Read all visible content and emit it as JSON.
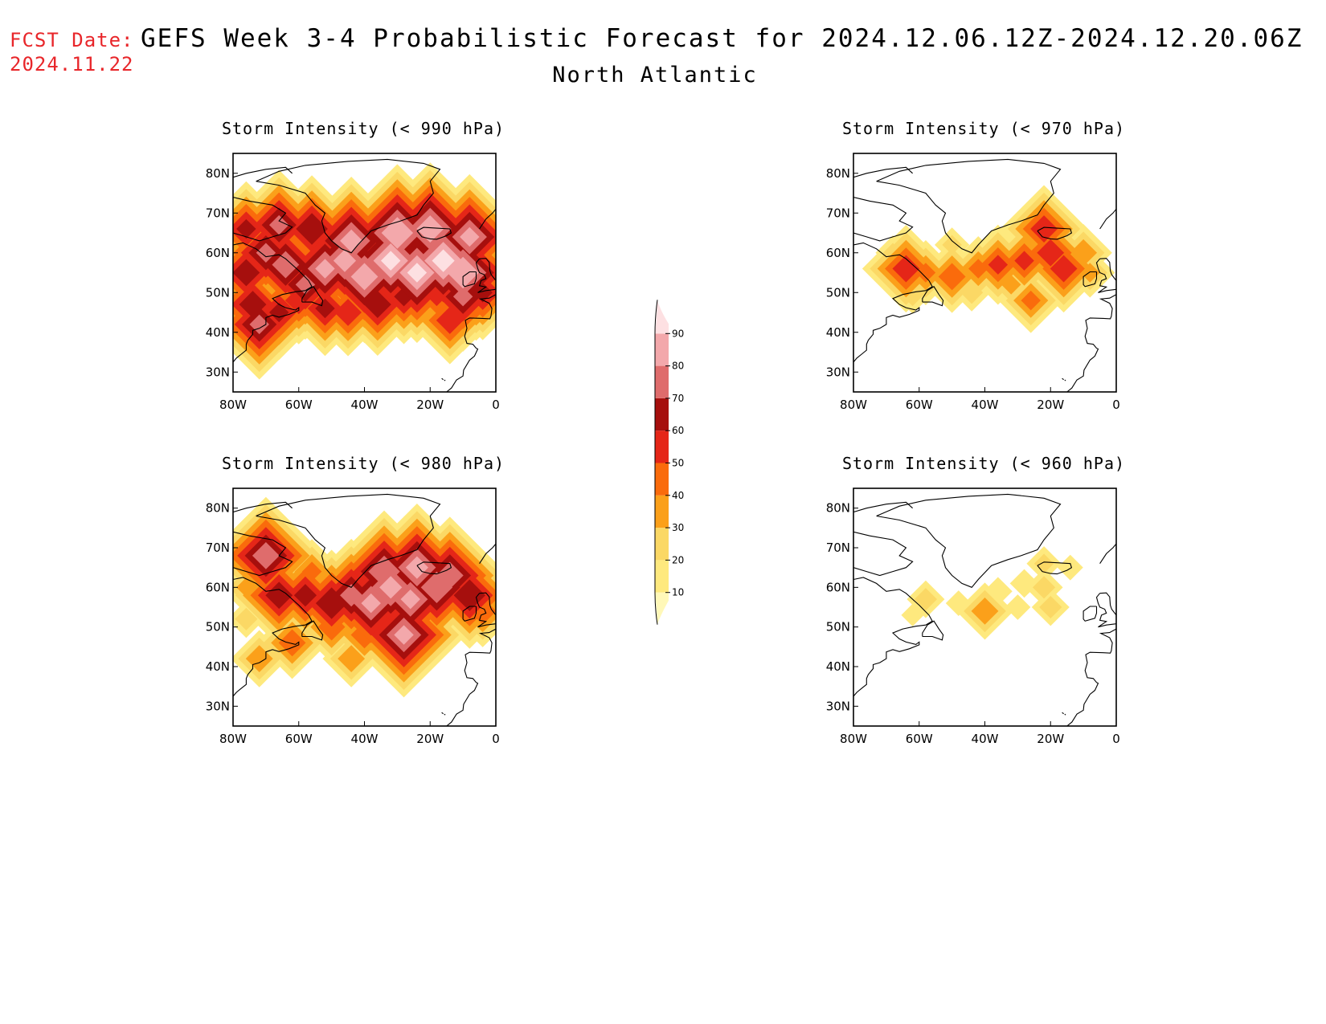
{
  "header": {
    "fcst_label": "FCST Date:",
    "fcst_date": "2024.11.22",
    "title": "GEFS Week 3-4 Probabilistic Forecast for 2024.12.06.12Z-2024.12.20.06Z",
    "subtitle": "North Atlantic"
  },
  "colorbar": {
    "levels": [
      10,
      20,
      30,
      40,
      50,
      60,
      70,
      80,
      90
    ],
    "colors": [
      "#fff8b8",
      "#fee97e",
      "#fbd865",
      "#fba01a",
      "#fa6b0c",
      "#e52618",
      "#a60f0d",
      "#df6c6c",
      "#f3a8ab",
      "#fde0e2"
    ]
  },
  "axes": {
    "x_ticks": [
      "80W",
      "60W",
      "40W",
      "20W",
      "0"
    ],
    "y_ticks": [
      "80N",
      "70N",
      "60N",
      "50N",
      "40N",
      "30N"
    ]
  },
  "panels": [
    {
      "title": "Storm Intensity (< 990 hPa)",
      "fields": [
        {
          "lon": -74,
          "lat": 47,
          "val": 65
        },
        {
          "lon": -72,
          "lat": 42,
          "val": 70
        },
        {
          "lon": -66,
          "lat": 45,
          "val": 60
        },
        {
          "lon": -60,
          "lat": 48,
          "val": 55
        },
        {
          "lon": -52,
          "lat": 46,
          "val": 60
        },
        {
          "lon": -45,
          "lat": 45,
          "val": 55
        },
        {
          "lon": -36,
          "lat": 47,
          "val": 65
        },
        {
          "lon": -28,
          "lat": 49,
          "val": 60
        },
        {
          "lon": -18,
          "lat": 50,
          "val": 55
        },
        {
          "lon": -10,
          "lat": 49,
          "val": 70
        },
        {
          "lon": -14,
          "lat": 43,
          "val": 55
        },
        {
          "lon": -6,
          "lat": 47,
          "val": 45
        },
        {
          "lon": -76,
          "lat": 55,
          "val": 65
        },
        {
          "lon": -70,
          "lat": 60,
          "val": 70
        },
        {
          "lon": -64,
          "lat": 57,
          "val": 75
        },
        {
          "lon": -58,
          "lat": 52,
          "val": 70
        },
        {
          "lon": -52,
          "lat": 56,
          "val": 80
        },
        {
          "lon": -46,
          "lat": 58,
          "val": 82
        },
        {
          "lon": -40,
          "lat": 54,
          "val": 85
        },
        {
          "lon": -32,
          "lat": 58,
          "val": 90
        },
        {
          "lon": -24,
          "lat": 55,
          "val": 90
        },
        {
          "lon": -16,
          "lat": 58,
          "val": 92
        },
        {
          "lon": -10,
          "lat": 55,
          "val": 88
        },
        {
          "lon": -44,
          "lat": 63,
          "val": 82
        },
        {
          "lon": -30,
          "lat": 65,
          "val": 88
        },
        {
          "lon": -20,
          "lat": 66,
          "val": 85
        },
        {
          "lon": -66,
          "lat": 67,
          "val": 70
        },
        {
          "lon": -76,
          "lat": 66,
          "val": 60
        },
        {
          "lon": -56,
          "lat": 66,
          "val": 68
        },
        {
          "lon": -8,
          "lat": 64,
          "val": 80
        },
        {
          "lon": -4,
          "lat": 50,
          "val": 60
        }
      ]
    },
    {
      "title": "Storm Intensity (< 970 hPa)",
      "fields": [
        {
          "lon": -64,
          "lat": 56,
          "val": 55
        },
        {
          "lon": -58,
          "lat": 55,
          "val": 40
        },
        {
          "lon": -50,
          "lat": 54,
          "val": 45
        },
        {
          "lon": -42,
          "lat": 56,
          "val": 40
        },
        {
          "lon": -36,
          "lat": 57,
          "val": 50
        },
        {
          "lon": -28,
          "lat": 58,
          "val": 50
        },
        {
          "lon": -20,
          "lat": 60,
          "val": 55
        },
        {
          "lon": -16,
          "lat": 56,
          "val": 55
        },
        {
          "lon": -22,
          "lat": 66,
          "val": 55
        },
        {
          "lon": -32,
          "lat": 52,
          "val": 30
        },
        {
          "lon": -26,
          "lat": 48,
          "val": 40
        },
        {
          "lon": -62,
          "lat": 50,
          "val": 25
        },
        {
          "lon": -68,
          "lat": 60,
          "val": 20
        },
        {
          "lon": -50,
          "lat": 62,
          "val": 20
        },
        {
          "lon": -10,
          "lat": 60,
          "val": 35
        },
        {
          "lon": -8,
          "lat": 55,
          "val": 30
        },
        {
          "lon": -44,
          "lat": 50,
          "val": 22
        }
      ]
    },
    {
      "title": "Storm Intensity (< 980 hPa)",
      "fields": [
        {
          "lon": -70,
          "lat": 68,
          "val": 75
        },
        {
          "lon": -66,
          "lat": 58,
          "val": 65
        },
        {
          "lon": -58,
          "lat": 58,
          "val": 62
        },
        {
          "lon": -50,
          "lat": 56,
          "val": 68
        },
        {
          "lon": -44,
          "lat": 58,
          "val": 72
        },
        {
          "lon": -38,
          "lat": 56,
          "val": 80
        },
        {
          "lon": -32,
          "lat": 60,
          "val": 82
        },
        {
          "lon": -26,
          "lat": 57,
          "val": 80
        },
        {
          "lon": -18,
          "lat": 60,
          "val": 78
        },
        {
          "lon": -24,
          "lat": 65,
          "val": 82
        },
        {
          "lon": -34,
          "lat": 64,
          "val": 78
        },
        {
          "lon": -14,
          "lat": 63,
          "val": 75
        },
        {
          "lon": -8,
          "lat": 58,
          "val": 68
        },
        {
          "lon": -28,
          "lat": 48,
          "val": 80
        },
        {
          "lon": -40,
          "lat": 48,
          "val": 45
        },
        {
          "lon": -44,
          "lat": 42,
          "val": 35
        },
        {
          "lon": -62,
          "lat": 46,
          "val": 45
        },
        {
          "lon": -72,
          "lat": 42,
          "val": 35
        },
        {
          "lon": -76,
          "lat": 52,
          "val": 22
        },
        {
          "lon": -4,
          "lat": 54,
          "val": 45
        },
        {
          "lon": -50,
          "lat": 50,
          "val": 45
        },
        {
          "lon": -20,
          "lat": 50,
          "val": 35
        },
        {
          "lon": -76,
          "lat": 60,
          "val": 30
        },
        {
          "lon": -56,
          "lat": 64,
          "val": 40
        }
      ]
    },
    {
      "title": "Storm Intensity (< 960 hPa)",
      "fields": [
        {
          "lon": -58,
          "lat": 57,
          "val": 22
        },
        {
          "lon": -48,
          "lat": 56,
          "val": 14
        },
        {
          "lon": -40,
          "lat": 54,
          "val": 35
        },
        {
          "lon": -36,
          "lat": 59,
          "val": 16
        },
        {
          "lon": -28,
          "lat": 61,
          "val": 16
        },
        {
          "lon": -22,
          "lat": 60,
          "val": 22
        },
        {
          "lon": -20,
          "lat": 55,
          "val": 22
        },
        {
          "lon": -22,
          "lat": 66,
          "val": 20
        },
        {
          "lon": -14,
          "lat": 65,
          "val": 14
        },
        {
          "lon": -30,
          "lat": 55,
          "val": 14
        },
        {
          "lon": -62,
          "lat": 53,
          "val": 12
        }
      ]
    }
  ]
}
